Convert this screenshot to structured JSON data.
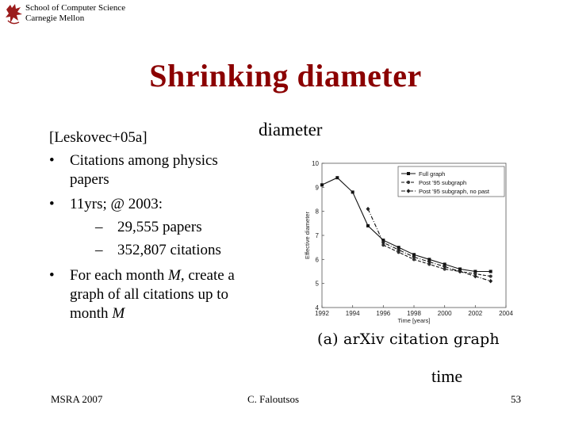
{
  "header": {
    "school_line1": "School of Computer Science",
    "school_line2": "Carnegie Mellon"
  },
  "slide": {
    "title": "Shrinking diameter",
    "diameter_label": "diameter",
    "time_label": "time",
    "ref": "[Leskovec+05a]",
    "bullets": [
      {
        "marker": "•",
        "lines": [
          "Citations among physics",
          "papers"
        ]
      },
      {
        "marker": "•",
        "lines": [
          "11yrs; @ 2003:"
        ]
      },
      {
        "marker": "•",
        "lines": [
          "For each month M, create a",
          "graph of all citations up to",
          "month M"
        ]
      }
    ],
    "subbullets": [
      {
        "marker": "–",
        "text": "29,555 papers"
      },
      {
        "marker": "–",
        "text": "352,807 citations"
      }
    ]
  },
  "footer": {
    "left": "MSRA 2007",
    "center": "C. Faloutsos",
    "page": "53"
  },
  "chart_data": {
    "type": "line",
    "caption": "(a) arXiv citation graph",
    "xlabel": "Time [years]",
    "ylabel": "Effective diameter",
    "xlim": [
      1992,
      2004
    ],
    "ylim": [
      4,
      10
    ],
    "xticks": [
      "1992",
      "1994",
      "1996",
      "1998",
      "2000",
      "2002",
      "2004"
    ],
    "yticks": [
      "4",
      "5",
      "6",
      "7",
      "8",
      "9",
      "10"
    ],
    "legend_position": "top-right",
    "series": [
      {
        "name": "Full graph",
        "marker": "square",
        "dash": "solid",
        "x": [
          1992,
          1993,
          1994,
          1995,
          1996,
          1997,
          1998,
          1999,
          2000,
          2001,
          2002,
          2003
        ],
        "y": [
          9.1,
          9.4,
          8.8,
          7.4,
          6.8,
          6.5,
          6.2,
          6.0,
          5.8,
          5.6,
          5.5,
          5.5
        ]
      },
      {
        "name": "Post '95 subgraph",
        "marker": "circle",
        "dash": "dashed",
        "x": [
          1996,
          1997,
          1998,
          1999,
          2000,
          2001,
          2002,
          2003
        ],
        "y": [
          6.6,
          6.3,
          6.0,
          5.8,
          5.6,
          5.5,
          5.4,
          5.3
        ]
      },
      {
        "name": "Post '95 subgraph, no past",
        "marker": "diamond",
        "dash": "dashdot",
        "x": [
          1995,
          1996,
          1997,
          1998,
          1999,
          2000,
          2001,
          2002,
          2003
        ],
        "y": [
          8.1,
          6.7,
          6.4,
          6.1,
          5.9,
          5.7,
          5.5,
          5.3,
          5.1
        ]
      }
    ]
  }
}
